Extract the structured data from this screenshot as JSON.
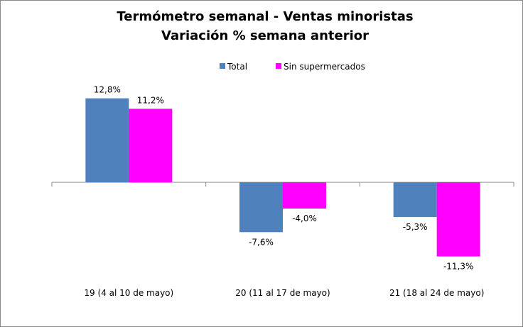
{
  "chart_data": {
    "type": "bar",
    "title": "Termómetro semanal - Ventas minoristas",
    "subtitle": "Variación % semana anterior",
    "categories": [
      "19 (4 al 10 de mayo)",
      "20 (11 al 17 de mayo)",
      "21 (18 al 24 de mayo)"
    ],
    "series": [
      {
        "name": "Total",
        "color": "#4f81bd",
        "values": [
          12.8,
          -7.6,
          -5.3
        ],
        "labels": [
          "12,8%",
          "-7,6%",
          "-5,3%"
        ]
      },
      {
        "name": "Sin supermercados",
        "color": "#ff00ff",
        "values": [
          11.2,
          -4.0,
          -11.3
        ],
        "labels": [
          "11,2%",
          "-4,0%",
          "-11,3%"
        ]
      }
    ],
    "xlabel": "",
    "ylabel": "",
    "ylim": [
      -15,
      15
    ],
    "grid": false,
    "legend": "top-center"
  }
}
